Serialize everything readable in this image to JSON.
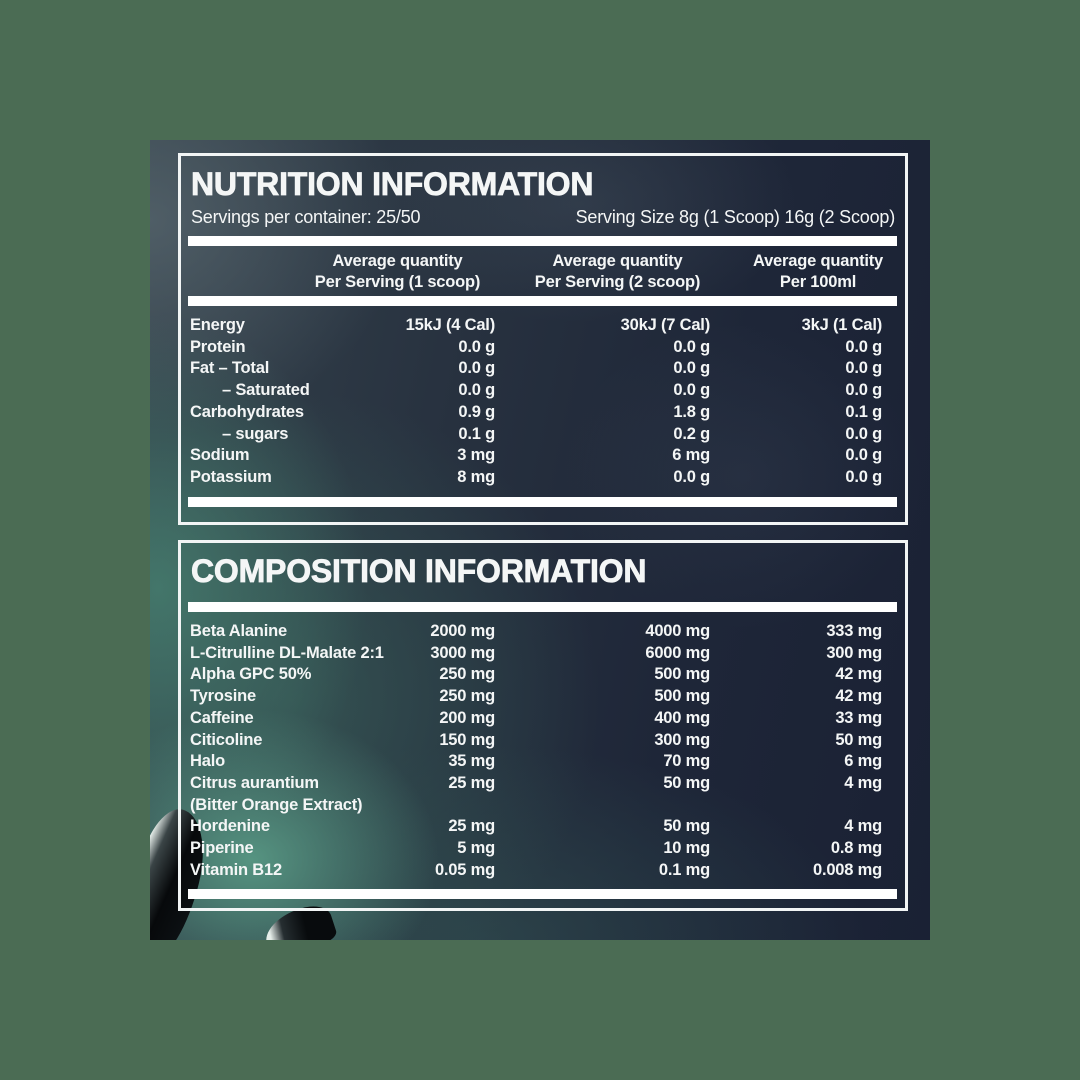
{
  "colors": {
    "page_background": "#4b6c54",
    "photo_navy": "#1d2436",
    "photo_teal": "#47806f",
    "panel_border": "#f2f5f5",
    "text": "#f4f6f6"
  },
  "nutrition": {
    "title": "NUTRITION INFORMATION",
    "servings_per_container": "Servings per container: 25/50",
    "serving_size": "Serving Size 8g (1 Scoop) 16g (2 Scoop)",
    "columns": [
      "Average quantity\nPer Serving (1 scoop)",
      "Average quantity\nPer Serving (2 scoop)",
      "Average quantity\nPer 100ml"
    ],
    "rows": [
      {
        "label": "Energy",
        "v1": "15kJ (4 Cal)",
        "v2": "30kJ (7 Cal)",
        "v3": "3kJ (1 Cal)"
      },
      {
        "label": "Protein",
        "v1": "0.0 g",
        "v2": "0.0 g",
        "v3": "0.0 g"
      },
      {
        "label": "Fat – Total",
        "v1": "0.0 g",
        "v2": "0.0 g",
        "v3": "0.0 g"
      },
      {
        "label": "– Saturated",
        "indent": true,
        "v1": "0.0 g",
        "v2": "0.0 g",
        "v3": "0.0 g"
      },
      {
        "label": "Carbohydrates",
        "v1": "0.9 g",
        "v2": "1.8 g",
        "v3": "0.1 g"
      },
      {
        "label": "– sugars",
        "indent": true,
        "v1": "0.1 g",
        "v2": "0.2 g",
        "v3": "0.0 g"
      },
      {
        "label": "Sodium",
        "v1": "3 mg",
        "v2": "6 mg",
        "v3": "0.0 g"
      },
      {
        "label": "Potassium",
        "v1": "8 mg",
        "v2": "0.0 g",
        "v3": "0.0 g"
      }
    ]
  },
  "composition": {
    "title": "COMPOSITION INFORMATION",
    "rows": [
      {
        "label": "Beta Alanine",
        "v1": "2000 mg",
        "v2": "4000 mg",
        "v3": "333 mg"
      },
      {
        "label": "L-Citrulline DL-Malate 2:1",
        "v1": "3000 mg",
        "v2": "6000 mg",
        "v3": "300 mg"
      },
      {
        "label": "Alpha GPC 50%",
        "v1": "250 mg",
        "v2": "500 mg",
        "v3": "42 mg"
      },
      {
        "label": "Tyrosine",
        "v1": "250 mg",
        "v2": "500 mg",
        "v3": "42 mg"
      },
      {
        "label": "Caffeine",
        "v1": "200 mg",
        "v2": "400 mg",
        "v3": "33 mg"
      },
      {
        "label": "Citicoline",
        "v1": "150 mg",
        "v2": "300 mg",
        "v3": "50 mg"
      },
      {
        "label": "Halo",
        "v1": "35 mg",
        "v2": "70 mg",
        "v3": "6 mg"
      },
      {
        "label": "Citrus aurantium\n(Bitter Orange Extract)",
        "v1": "25 mg",
        "v2": "50 mg",
        "v3": "4 mg"
      },
      {
        "label": "Hordenine",
        "v1": "25 mg",
        "v2": "50 mg",
        "v3": "4 mg"
      },
      {
        "label": "Piperine",
        "v1": "5 mg",
        "v2": "10 mg",
        "v3": "0.8 mg"
      },
      {
        "label": "Vitamin B12",
        "v1": "0.05 mg",
        "v2": "0.1 mg",
        "v3": "0.008 mg"
      }
    ]
  }
}
